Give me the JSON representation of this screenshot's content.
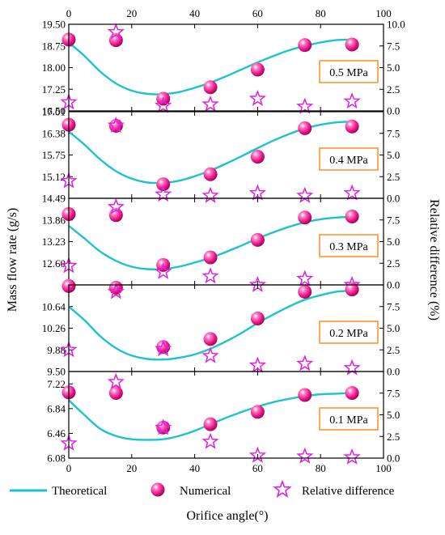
{
  "chart_data": {
    "type": "scatter",
    "xlabel": "Orifice angle(°)",
    "ylabel": "Mass flow rate (g/s)",
    "y2label": "Relative difference (%)",
    "xlim": [
      0,
      100
    ],
    "xticks": [
      "0",
      "20",
      "40",
      "60",
      "80",
      "100"
    ],
    "legend": [
      "Theoretical",
      "Numerical",
      "Relative difference"
    ],
    "colors": {
      "theoretical": "#1cc3cf",
      "numerical": "#e8158c",
      "relative": "#e020e0",
      "annot_border": "#ff8c28"
    },
    "panels": [
      {
        "label": "0.5 MPa",
        "ylim": [
          16.5,
          19.5
        ],
        "yticks": [
          "16.50",
          "17.25",
          "18.00",
          "18.75",
          "19.50"
        ],
        "y2lim": [
          0,
          10
        ],
        "y2ticks": [
          "0.0",
          "2.5",
          "5.0",
          "7.5",
          "10.0"
        ],
        "theoretical": {
          "x": [
            0,
            5,
            10,
            15,
            20,
            25,
            30,
            35,
            40,
            45,
            50,
            55,
            60,
            65,
            70,
            75,
            80,
            85,
            90
          ],
          "y": [
            18.87,
            18.4,
            17.86,
            17.45,
            17.2,
            17.09,
            17.08,
            17.15,
            17.3,
            17.48,
            17.7,
            17.94,
            18.18,
            18.4,
            18.6,
            18.75,
            18.87,
            18.95,
            18.97
          ]
        },
        "numerical": {
          "x": [
            0,
            15,
            30,
            45,
            60,
            75,
            90
          ],
          "y": [
            18.97,
            18.95,
            16.92,
            17.32,
            17.93,
            18.78,
            18.8
          ]
        },
        "relative": {
          "x": [
            0,
            15,
            30,
            45,
            60,
            75,
            90
          ],
          "y": [
            1.0,
            9.1,
            0.6,
            0.75,
            1.4,
            0.5,
            1.1
          ]
        }
      },
      {
        "label": "0.4 MPa",
        "ylim": [
          14.49,
          17.01
        ],
        "yticks": [
          "14.49",
          "15.12",
          "15.75",
          "16.38",
          "17.01"
        ],
        "y2lim": [
          0,
          10
        ],
        "y2ticks": [
          "0.0",
          "2.5",
          "5.0",
          "7.5"
        ],
        "theoretical": {
          "x": [
            0,
            5,
            10,
            15,
            20,
            25,
            30,
            35,
            40,
            45,
            50,
            55,
            60,
            65,
            70,
            75,
            80,
            85,
            90
          ],
          "y": [
            16.43,
            16.05,
            15.62,
            15.28,
            15.06,
            14.95,
            14.94,
            15.0,
            15.13,
            15.3,
            15.5,
            15.72,
            15.95,
            16.17,
            16.36,
            16.52,
            16.63,
            16.7,
            16.72
          ]
        },
        "numerical": {
          "x": [
            0,
            15,
            30,
            45,
            60,
            75,
            90
          ],
          "y": [
            16.63,
            16.6,
            14.9,
            15.19,
            15.7,
            16.53,
            16.58
          ]
        },
        "relative": {
          "x": [
            0,
            15,
            30,
            45,
            60,
            75,
            90
          ],
          "y": [
            2.0,
            8.4,
            0.45,
            0.3,
            0.6,
            0.3,
            0.6
          ]
        }
      },
      {
        "label": "0.3 MPa",
        "ylim": [
          11.97,
          14.49
        ],
        "yticks": [
          "12.60",
          "13.23",
          "13.86"
        ],
        "y2lim": [
          0,
          10
        ],
        "y2ticks": [
          "0.0",
          "2.5",
          "5.0",
          "7.5"
        ],
        "theoretical": {
          "x": [
            0,
            5,
            10,
            15,
            20,
            25,
            30,
            35,
            40,
            45,
            50,
            55,
            60,
            65,
            70,
            75,
            80,
            85,
            90
          ],
          "y": [
            13.69,
            13.32,
            12.94,
            12.67,
            12.5,
            12.43,
            12.43,
            12.5,
            12.62,
            12.76,
            12.93,
            13.12,
            13.32,
            13.5,
            13.66,
            13.79,
            13.88,
            13.93,
            13.95
          ]
        },
        "numerical": {
          "x": [
            0,
            15,
            30,
            45,
            60,
            75,
            90
          ],
          "y": [
            14.03,
            14.0,
            12.55,
            12.77,
            13.28,
            13.93,
            13.96
          ]
        },
        "relative": {
          "x": [
            0,
            15,
            30,
            45,
            60,
            75,
            90
          ],
          "y": [
            2.2,
            9.0,
            1.5,
            1.0,
            0.0,
            0.7,
            0.0
          ]
        }
      },
      {
        "label": "0.2 MPa",
        "ylim": [
          9.5,
          11.02
        ],
        "yticks": [
          "9.50",
          "9.88",
          "10.26",
          "10.64"
        ],
        "y2lim": [
          0,
          10
        ],
        "y2ticks": [
          "0.0",
          "2.5",
          "5.0",
          "7.5"
        ],
        "theoretical": {
          "x": [
            0,
            5,
            10,
            15,
            20,
            25,
            30,
            35,
            40,
            45,
            50,
            55,
            60,
            65,
            70,
            75,
            80,
            85,
            90
          ],
          "y": [
            10.64,
            10.4,
            10.12,
            9.91,
            9.78,
            9.72,
            9.71,
            9.74,
            9.8,
            9.9,
            10.03,
            10.18,
            10.35,
            10.5,
            10.64,
            10.76,
            10.84,
            10.9,
            10.92
          ]
        },
        "numerical": {
          "x": [
            0,
            15,
            30,
            45,
            60,
            75,
            90
          ],
          "y": [
            11.0,
            10.97,
            9.93,
            10.07,
            10.43,
            10.9,
            10.94
          ]
        },
        "relative": {
          "x": [
            0,
            15,
            30,
            45,
            60,
            75,
            90
          ],
          "y": [
            2.5,
            9.2,
            2.6,
            1.8,
            0.7,
            0.9,
            0.4
          ]
        }
      },
      {
        "label": "0.1 MPa",
        "ylim": [
          6.08,
          7.41
        ],
        "yticks": [
          "6.08",
          "6.46",
          "6.84",
          "7.22"
        ],
        "y2lim": [
          0,
          10
        ],
        "y2ticks": [
          "0.0",
          "2.5",
          "5.0",
          "7.5"
        ],
        "theoretical": {
          "x": [
            0,
            5,
            10,
            15,
            20,
            25,
            30,
            35,
            40,
            45,
            50,
            55,
            60,
            65,
            70,
            75,
            80,
            85,
            90
          ],
          "y": [
            6.97,
            6.74,
            6.53,
            6.42,
            6.37,
            6.36,
            6.37,
            6.42,
            6.5,
            6.6,
            6.7,
            6.79,
            6.87,
            6.94,
            6.99,
            7.03,
            7.06,
            7.07,
            7.08
          ]
        },
        "numerical": {
          "x": [
            0,
            15,
            30,
            45,
            60,
            75,
            90
          ],
          "y": [
            7.09,
            7.08,
            6.55,
            6.6,
            6.79,
            7.05,
            7.08
          ]
        },
        "relative": {
          "x": [
            0,
            15,
            30,
            45,
            60,
            75,
            90
          ],
          "y": [
            1.7,
            8.8,
            3.5,
            1.9,
            0.3,
            0.2,
            0.1
          ]
        }
      }
    ]
  }
}
